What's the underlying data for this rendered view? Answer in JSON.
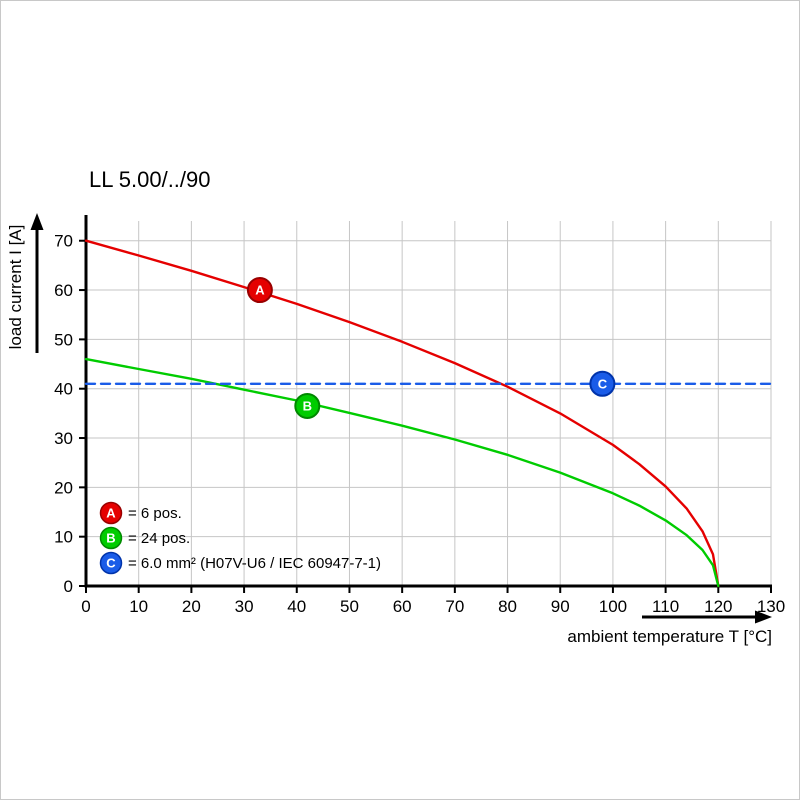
{
  "chart_data": {
    "type": "line",
    "title": "LL 5.00/../90",
    "xlabel": "ambient temperature T [°C]",
    "ylabel": "load current I [A]",
    "xlim": [
      0,
      130
    ],
    "ylim": [
      0,
      74
    ],
    "xticks": [
      0,
      10,
      20,
      30,
      40,
      50,
      60,
      70,
      80,
      90,
      100,
      110,
      120,
      130
    ],
    "yticks": [
      0,
      10,
      20,
      30,
      40,
      50,
      60,
      70
    ],
    "grid": true,
    "grid_color": "#c6c6c6",
    "legend_position": "inside bottom-left",
    "series": [
      {
        "name": "A",
        "legend_label": "= 6 pos.",
        "color": "#e50000",
        "badge_stroke": "#990000",
        "style": "solid",
        "x": [
          0,
          10,
          20,
          30,
          40,
          50,
          60,
          70,
          80,
          90,
          100,
          105,
          110,
          114,
          117,
          119,
          120
        ],
        "y": [
          70,
          67.0,
          63.9,
          60.6,
          57.2,
          53.5,
          49.5,
          45.2,
          40.4,
          35.0,
          28.6,
          24.7,
          20.2,
          15.7,
          11.1,
          6.4,
          0
        ],
        "marker": {
          "x": 33,
          "y": 60
        }
      },
      {
        "name": "B",
        "legend_label": "= 24 pos.",
        "color": "#00cc00",
        "badge_stroke": "#008800",
        "style": "solid",
        "x": [
          0,
          10,
          20,
          30,
          40,
          50,
          60,
          70,
          80,
          90,
          100,
          105,
          110,
          114,
          117,
          119,
          120
        ],
        "y": [
          46,
          44.0,
          42.0,
          39.8,
          37.6,
          35.1,
          32.5,
          29.7,
          26.6,
          23.0,
          18.8,
          16.3,
          13.3,
          10.3,
          7.3,
          4.2,
          0
        ],
        "marker": {
          "x": 42,
          "y": 36.5
        }
      },
      {
        "name": "C",
        "legend_label": "= 6.0 mm² (H07V-U6 / IEC 60947-7-1)",
        "color": "#1a5ce8",
        "badge_stroke": "#0033aa",
        "style": "dashed",
        "x": [
          0,
          130
        ],
        "y": [
          41,
          41
        ],
        "marker": {
          "x": 98,
          "y": 41
        }
      }
    ]
  }
}
